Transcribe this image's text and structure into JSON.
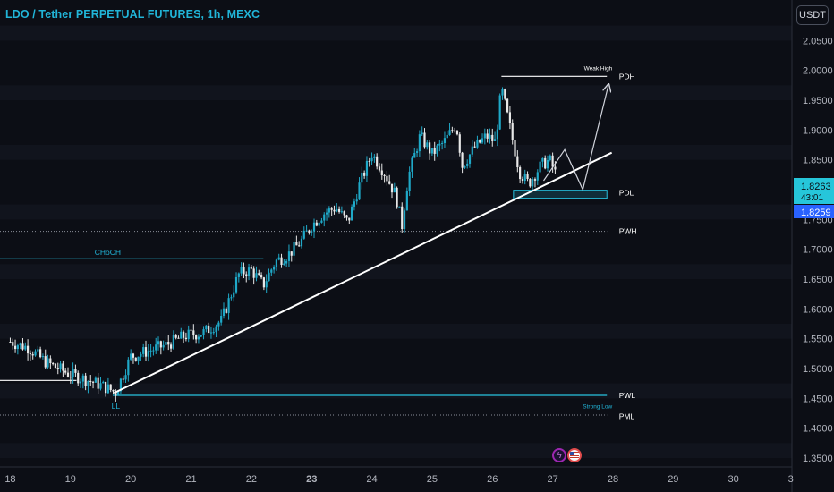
{
  "header": {
    "title": "LDO / Tether PERPETUAL FUTURES, 1h, MEXC",
    "currency_button": "USDT"
  },
  "colors": {
    "background": "#0c0e15",
    "accent": "#21b5d8",
    "grid": "#161a24",
    "axis_text": "#b2b5be",
    "up_candle": "#1fa9c8",
    "down_candle": "#e8e8e8",
    "trendline": "#ffffff",
    "level_line": "#28c2e0"
  },
  "icons": [
    "lightning-icon",
    "us-flag-icon"
  ],
  "chart_data": {
    "type": "candlestick",
    "title": "LDO / Tether PERPETUAL FUTURES, 1h, MEXC",
    "x_tick_labels": [
      "18",
      "19",
      "20",
      "21",
      "22",
      "23",
      "24",
      "25",
      "26",
      "27",
      "28",
      "29",
      "30",
      "3"
    ],
    "x_bold_ticks": [
      "23"
    ],
    "y_tick_labels": [
      "2.0500",
      "2.0000",
      "1.9500",
      "1.9000",
      "1.8500",
      "1.8000",
      "1.7500",
      "1.7000",
      "1.6500",
      "1.6000",
      "1.5500",
      "1.5000",
      "1.4500",
      "1.4000",
      "1.3500"
    ],
    "ylim": [
      1.335,
      2.118
    ],
    "xlim": [
      17.83,
      30.97
    ],
    "price_tags": [
      {
        "value": "1.8263",
        "sub": "43:01",
        "bg": "#26c6da",
        "color": "#0c0e15"
      },
      {
        "value": "1.8259",
        "bg": "#2962ff",
        "color": "#ffffff"
      }
    ],
    "current_price": 1.8263,
    "anchors": [
      [
        18.0,
        1.545
      ],
      [
        18.3,
        1.535
      ],
      [
        18.6,
        1.51
      ],
      [
        19.0,
        1.49
      ],
      [
        19.3,
        1.48
      ],
      [
        19.55,
        1.47
      ],
      [
        19.75,
        1.46
      ],
      [
        20.0,
        1.52
      ],
      [
        20.3,
        1.53
      ],
      [
        20.6,
        1.54
      ],
      [
        20.9,
        1.555
      ],
      [
        21.2,
        1.56
      ],
      [
        21.5,
        1.58
      ],
      [
        21.8,
        1.66
      ],
      [
        22.0,
        1.665
      ],
      [
        22.2,
        1.64
      ],
      [
        22.4,
        1.68
      ],
      [
        22.6,
        1.69
      ],
      [
        22.8,
        1.71
      ],
      [
        23.0,
        1.74
      ],
      [
        23.2,
        1.76
      ],
      [
        23.4,
        1.77
      ],
      [
        23.6,
        1.745
      ],
      [
        23.8,
        1.81
      ],
      [
        24.0,
        1.86
      ],
      [
        24.2,
        1.83
      ],
      [
        24.4,
        1.79
      ],
      [
        24.5,
        1.74
      ],
      [
        24.6,
        1.82
      ],
      [
        24.8,
        1.89
      ],
      [
        25.0,
        1.86
      ],
      [
        25.2,
        1.88
      ],
      [
        25.4,
        1.91
      ],
      [
        25.5,
        1.84
      ],
      [
        25.7,
        1.87
      ],
      [
        25.9,
        1.89
      ],
      [
        26.05,
        1.88
      ],
      [
        26.15,
        1.97
      ],
      [
        26.3,
        1.9
      ],
      [
        26.45,
        1.83
      ],
      [
        26.6,
        1.81
      ],
      [
        26.8,
        1.84
      ],
      [
        26.95,
        1.85
      ],
      [
        27.05,
        1.826
      ]
    ],
    "lines": [
      {
        "label": "PDH",
        "y": 1.99,
        "x_start": 26.15,
        "x_end": 27.9,
        "style": "solid",
        "color": "#ffffff"
      },
      {
        "label": "PDL",
        "y": 1.793,
        "x_start": 26.35,
        "x_end": 27.9,
        "style": "box",
        "color": "#28c2e0"
      },
      {
        "label": "PWH",
        "y": 1.73,
        "x_start": 17.83,
        "x_end": 27.9,
        "style": "dotted",
        "color": "#8a8f99"
      },
      {
        "label": "PWL",
        "y": 1.455,
        "x_start": 19.7,
        "x_end": 27.9,
        "style": "solid",
        "color": "#28c2e0"
      },
      {
        "label": "PML",
        "y": 1.422,
        "x_start": 17.83,
        "x_end": 27.9,
        "style": "dotted",
        "color": "#8a8f99"
      },
      {
        "label": "CHoCH",
        "y": 1.684,
        "x_start": 17.83,
        "x_end": 22.2,
        "style": "solid",
        "color": "#28c2e0"
      },
      {
        "label": "",
        "y": 1.48,
        "x_start": 17.83,
        "x_end": 19.1,
        "style": "solid",
        "color": "#ffffff"
      }
    ],
    "trendline": {
      "from": [
        19.72,
        1.459
      ],
      "to": [
        27.98,
        1.862
      ]
    },
    "projection": [
      [
        26.85,
        1.815
      ],
      [
        27.2,
        1.867
      ],
      [
        27.5,
        1.8
      ],
      [
        27.92,
        1.973
      ]
    ],
    "annotations": [
      {
        "text": "Weak High",
        "x": 27.52,
        "y": 2.005
      },
      {
        "text": "PDH",
        "x": 28.1,
        "y": 1.99
      },
      {
        "text": "PDL",
        "x": 28.1,
        "y": 1.795
      },
      {
        "text": "PWH",
        "x": 28.1,
        "y": 1.73
      },
      {
        "text": "PWL",
        "x": 28.1,
        "y": 1.455
      },
      {
        "text": "Strong Low",
        "x": 27.5,
        "y": 1.438
      },
      {
        "text": "PML",
        "x": 28.1,
        "y": 1.42
      },
      {
        "text": "CHoCH",
        "x": 19.4,
        "y": 1.695
      },
      {
        "text": "LL",
        "x": 19.68,
        "y": 1.437
      }
    ],
    "grid": "horizontal-bands",
    "legend": "none"
  }
}
